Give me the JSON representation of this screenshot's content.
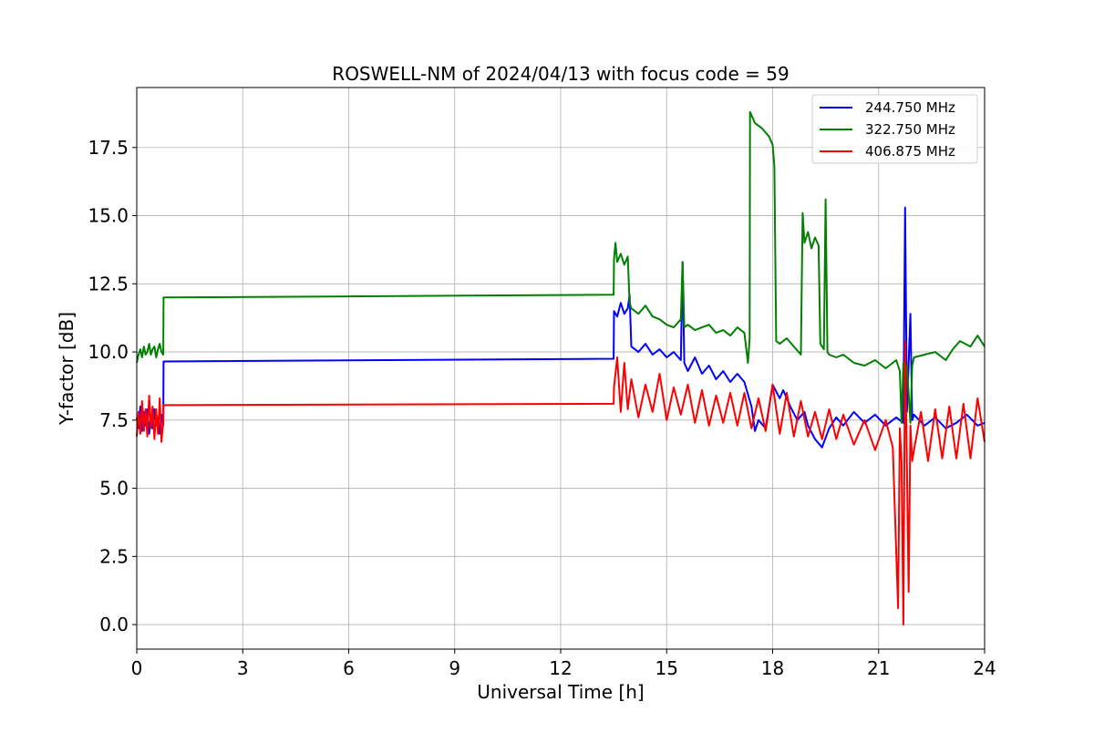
{
  "chart_data": {
    "type": "line",
    "title": "ROSWELL-NM of 2024/04/13 with focus code = 59",
    "xlabel": "Universal Time [h]",
    "ylabel": "Y-factor [dB]",
    "xlim": [
      0,
      24
    ],
    "ylim": [
      -0.9,
      19.7
    ],
    "xticks": [
      0,
      3,
      6,
      9,
      12,
      15,
      18,
      21,
      24
    ],
    "xtick_labels": [
      "0",
      "3",
      "6",
      "9",
      "12",
      "15",
      "18",
      "21",
      "24"
    ],
    "yticks": [
      0,
      2.5,
      5,
      7.5,
      10,
      12.5,
      15,
      17.5
    ],
    "ytick_labels": [
      "0.0",
      "2.5",
      "5.0",
      "7.5",
      "10.0",
      "12.5",
      "15.0",
      "17.5"
    ],
    "grid": true,
    "legend_position": "top-right",
    "series": [
      {
        "name": "244.750 MHz",
        "color": "#0000ff",
        "x": [
          0,
          0.05,
          0.1,
          0.15,
          0.2,
          0.25,
          0.3,
          0.35,
          0.4,
          0.45,
          0.5,
          0.55,
          0.6,
          0.65,
          0.7,
          0.75,
          0.76,
          13.5,
          13.51,
          13.6,
          13.7,
          13.8,
          13.9,
          13.95,
          14.0,
          14.2,
          14.4,
          14.6,
          14.8,
          15.0,
          15.2,
          15.4,
          15.45,
          15.5,
          15.6,
          15.8,
          16.0,
          16.2,
          16.4,
          16.6,
          16.8,
          17.0,
          17.2,
          17.4,
          17.5,
          17.6,
          17.8,
          18.0,
          18.2,
          18.3,
          18.5,
          18.7,
          18.9,
          19.0,
          19.2,
          19.4,
          19.6,
          19.8,
          20.0,
          20.3,
          20.6,
          20.9,
          21.2,
          21.5,
          21.7,
          21.75,
          21.8,
          21.9,
          21.95,
          22.0,
          22.3,
          22.6,
          22.9,
          23.2,
          23.5,
          23.8,
          24.0
        ],
        "y": [
          7.6,
          7.2,
          8.0,
          7.1,
          7.8,
          7.3,
          7.9,
          7.0,
          7.7,
          7.2,
          7.9,
          7.3,
          7.6,
          7.0,
          7.7,
          7.3,
          9.65,
          9.75,
          11.5,
          11.3,
          11.8,
          11.4,
          11.6,
          12.1,
          10.2,
          10.0,
          10.3,
          9.9,
          10.1,
          9.8,
          10.0,
          9.7,
          13.3,
          9.6,
          9.3,
          9.8,
          9.2,
          9.5,
          9.0,
          9.3,
          8.9,
          9.2,
          8.9,
          8.0,
          7.1,
          7.5,
          7.2,
          8.8,
          8.3,
          8.6,
          8.0,
          7.5,
          7.8,
          7.3,
          6.8,
          6.5,
          7.2,
          7.6,
          7.3,
          7.8,
          7.4,
          7.7,
          7.3,
          7.6,
          7.4,
          15.3,
          7.8,
          11.4,
          7.5,
          7.7,
          7.3,
          7.6,
          7.2,
          7.4,
          7.7,
          7.3,
          7.4
        ]
      },
      {
        "name": "322.750 MHz",
        "color": "#008000",
        "x": [
          0,
          0.05,
          0.1,
          0.15,
          0.2,
          0.25,
          0.3,
          0.35,
          0.4,
          0.45,
          0.5,
          0.55,
          0.6,
          0.65,
          0.7,
          0.75,
          0.76,
          13.5,
          13.51,
          13.55,
          13.6,
          13.7,
          13.8,
          13.9,
          13.95,
          14.0,
          14.2,
          14.4,
          14.6,
          14.8,
          15.0,
          15.2,
          15.4,
          15.45,
          15.5,
          15.6,
          15.8,
          16.0,
          16.2,
          16.4,
          16.6,
          16.8,
          17.0,
          17.2,
          17.3,
          17.35,
          17.36,
          17.5,
          17.7,
          17.9,
          18.0,
          18.05,
          18.1,
          18.2,
          18.4,
          18.6,
          18.8,
          18.85,
          18.9,
          19.0,
          19.1,
          19.2,
          19.3,
          19.35,
          19.45,
          19.5,
          19.55,
          19.6,
          19.8,
          20.0,
          20.3,
          20.6,
          20.9,
          21.2,
          21.5,
          21.6,
          21.65,
          21.7,
          21.8,
          21.9,
          21.95,
          22.0,
          22.3,
          22.6,
          22.9,
          23.1,
          23.3,
          23.6,
          23.8,
          24.0
        ],
        "y": [
          9.6,
          9.9,
          10.1,
          9.8,
          10.2,
          9.9,
          10.0,
          10.3,
          9.9,
          10.1,
          10.2,
          9.8,
          10.1,
          10.3,
          10.0,
          9.9,
          12.0,
          12.1,
          13.4,
          14.0,
          13.3,
          13.6,
          13.2,
          13.5,
          11.8,
          11.6,
          11.4,
          11.7,
          11.3,
          11.2,
          11.0,
          10.9,
          11.2,
          13.3,
          10.9,
          11.0,
          10.8,
          10.9,
          11.0,
          10.7,
          10.8,
          10.6,
          10.9,
          10.7,
          9.6,
          10.5,
          18.8,
          18.4,
          18.2,
          17.9,
          17.6,
          16.8,
          10.4,
          10.3,
          10.5,
          10.2,
          9.9,
          15.1,
          14.0,
          14.4,
          13.8,
          14.2,
          13.9,
          10.3,
          10.1,
          15.6,
          10.0,
          9.9,
          9.8,
          9.9,
          9.6,
          9.5,
          9.7,
          9.4,
          9.7,
          9.3,
          7.4,
          9.6,
          9.5,
          7.4,
          9.5,
          9.8,
          9.9,
          10.0,
          9.7,
          10.1,
          10.4,
          10.2,
          10.6,
          10.2
        ]
      },
      {
        "name": "406.875 MHz",
        "color": "#ff0000",
        "x": [
          0,
          0.05,
          0.1,
          0.15,
          0.2,
          0.25,
          0.3,
          0.35,
          0.4,
          0.45,
          0.5,
          0.55,
          0.6,
          0.65,
          0.7,
          0.75,
          0.76,
          13.5,
          13.51,
          13.6,
          13.7,
          13.8,
          13.9,
          14.0,
          14.2,
          14.4,
          14.6,
          14.8,
          15.0,
          15.2,
          15.4,
          15.6,
          15.8,
          16.0,
          16.2,
          16.4,
          16.6,
          16.8,
          17.0,
          17.2,
          17.4,
          17.6,
          17.8,
          18.0,
          18.2,
          18.4,
          18.6,
          18.8,
          19.0,
          19.2,
          19.4,
          19.6,
          19.8,
          20.0,
          20.3,
          20.6,
          20.9,
          21.2,
          21.4,
          21.55,
          21.6,
          21.65,
          21.7,
          21.75,
          21.8,
          21.85,
          21.9,
          21.95,
          22.0,
          22.2,
          22.4,
          22.6,
          22.8,
          23.0,
          23.2,
          23.4,
          23.6,
          23.8,
          24.0
        ],
        "y": [
          6.9,
          7.8,
          7.0,
          8.2,
          7.1,
          7.9,
          6.9,
          8.4,
          7.2,
          8.0,
          6.8,
          7.9,
          7.0,
          8.3,
          6.7,
          7.5,
          8.05,
          8.1,
          8.7,
          9.8,
          7.8,
          9.6,
          7.9,
          9.0,
          7.6,
          8.8,
          7.8,
          9.2,
          7.5,
          8.7,
          7.7,
          8.8,
          7.4,
          8.6,
          7.3,
          8.4,
          7.4,
          8.5,
          7.3,
          8.5,
          7.2,
          8.3,
          7.1,
          8.8,
          7.0,
          8.5,
          6.9,
          8.2,
          6.9,
          7.8,
          6.8,
          7.9,
          6.8,
          7.7,
          6.6,
          7.5,
          6.4,
          7.5,
          6.5,
          0.6,
          7.2,
          6.0,
          0.0,
          10.4,
          5.8,
          1.2,
          7.3,
          6.0,
          6.4,
          7.8,
          6.0,
          7.9,
          6.1,
          8.0,
          6.1,
          8.1,
          6.1,
          8.3,
          6.7
        ]
      }
    ]
  }
}
